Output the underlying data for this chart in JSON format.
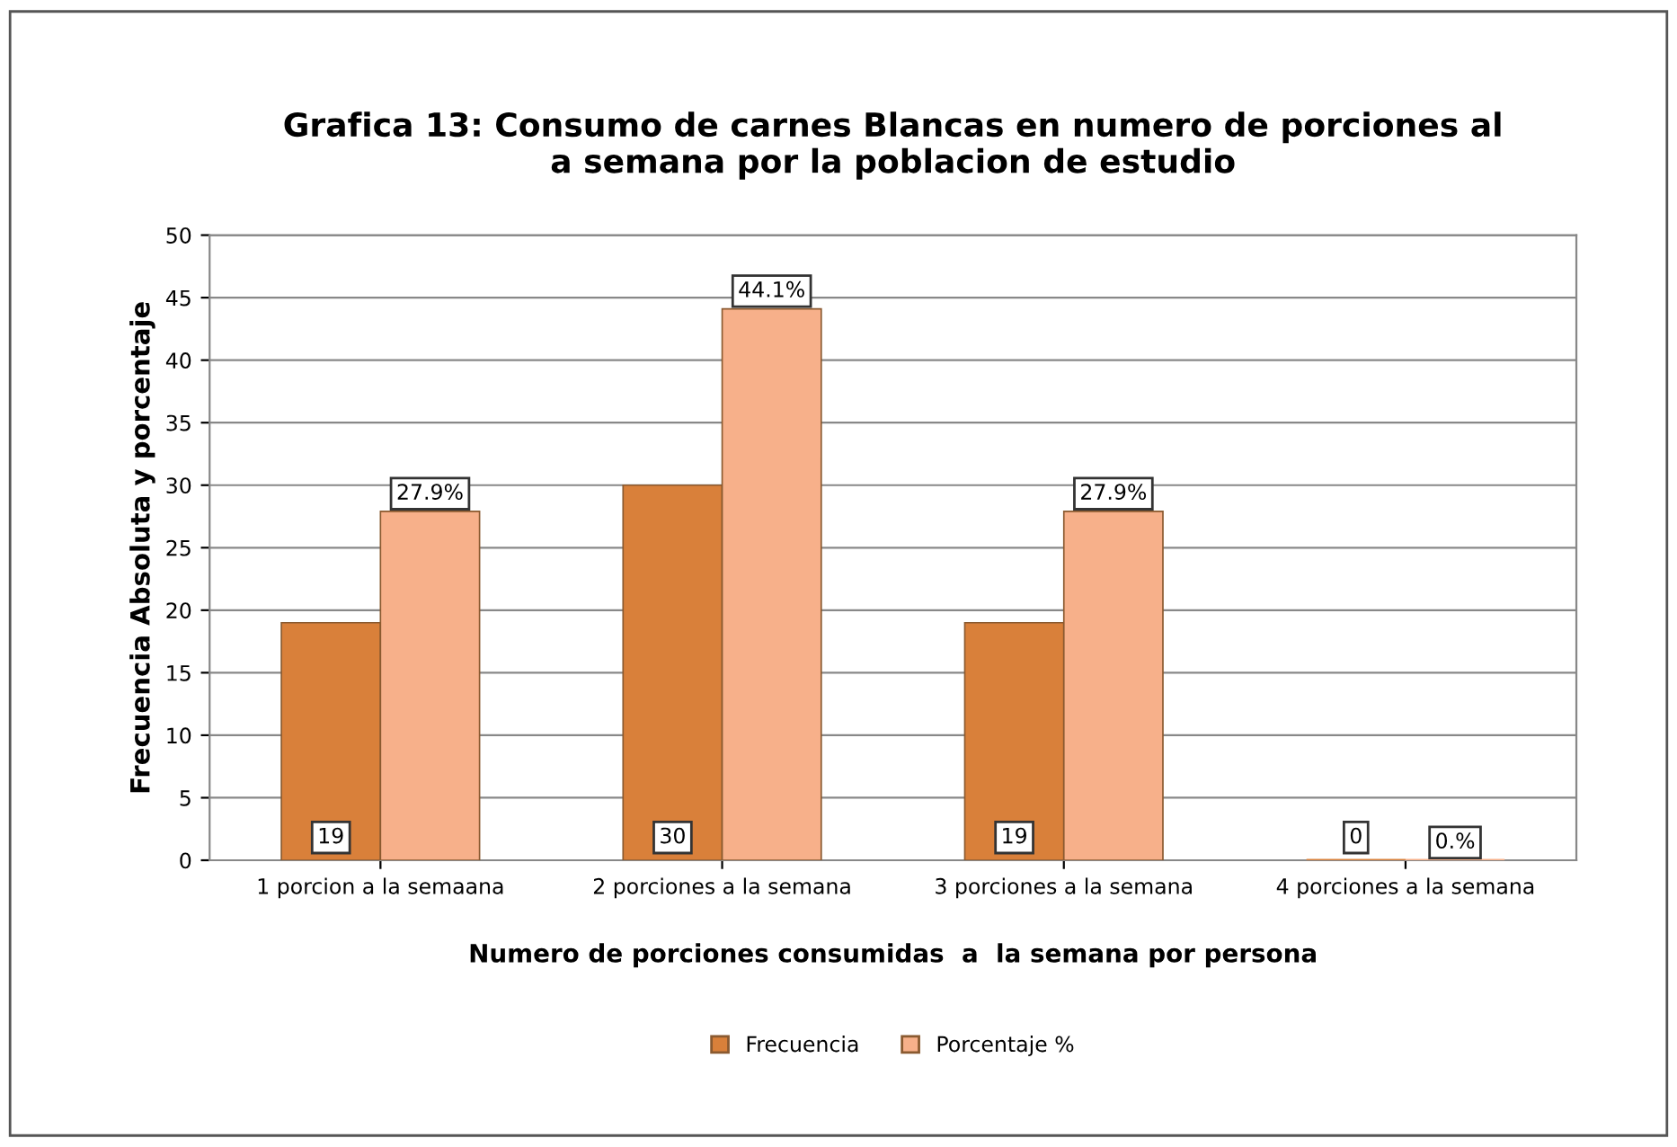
{
  "chart_data": {
    "type": "bar",
    "title": "Grafica 13: Consumo de carnes Blancas en numero de porciones al\na semana por la poblacion de estudio",
    "xlabel": "Numero de porciones consumidas  a  la semana por persona",
    "ylabel": "Frecuencia Absoluta y porcentaje",
    "categories": [
      "1 porcion a la semaana",
      "2 porciones a la semana",
      "3 porciones a la semana",
      "4 porciones a la semana"
    ],
    "series": [
      {
        "name": "Frecuencia",
        "color": "#d9803a",
        "values": [
          19,
          30,
          19,
          0
        ],
        "value_labels": [
          "19",
          "30",
          "19",
          "0"
        ]
      },
      {
        "name": "Porcentaje %",
        "color": "#f7b08a",
        "values": [
          27.9,
          44.1,
          27.9,
          0
        ],
        "value_labels": [
          "27.9%",
          "44.1%",
          "27.9%",
          "0.%"
        ]
      }
    ],
    "ylim": [
      0,
      50
    ],
    "yticks": [
      0,
      5,
      10,
      15,
      20,
      25,
      30,
      35,
      40,
      45,
      50
    ],
    "grid": "y",
    "legend": "bottom"
  }
}
